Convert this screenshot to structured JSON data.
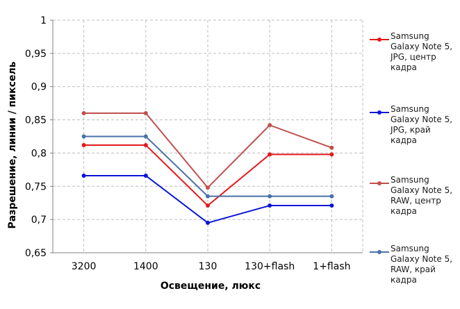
{
  "chart_data": {
    "type": "line",
    "xlabel": "Освещение,  люкс",
    "ylabel": "Разрешение,  линии / пиксель",
    "categories": [
      "3200",
      "1400",
      "130",
      "130+flash",
      "1+flash"
    ],
    "ylim": [
      0.65,
      1
    ],
    "yticks": [
      "0,65",
      "0,7",
      "0,75",
      "0,8",
      "0,85",
      "0,9",
      "0,95",
      "1"
    ],
    "ytick_values": [
      0.65,
      0.7,
      0.75,
      0.8,
      0.85,
      0.9,
      0.95,
      1
    ],
    "grid": true,
    "legend_position": "right",
    "series": [
      {
        "name": "Samsung Galaxy Note 5, JPG, центр кадра",
        "color": "#e31a1c",
        "values": [
          0.812,
          0.812,
          0.721,
          0.798,
          0.798
        ]
      },
      {
        "name": "Samsung Galaxy Note 5, JPG, край кадра",
        "color": "#0a14d6",
        "values": [
          0.766,
          0.766,
          0.695,
          0.721,
          0.721
        ]
      },
      {
        "name": "Samsung Galaxy Note 5, RAW, центр кадра",
        "color": "#c0504d",
        "values": [
          0.86,
          0.86,
          0.748,
          0.842,
          0.808
        ]
      },
      {
        "name": "Samsung Galaxy Note 5, RAW, край кадра",
        "color": "#4a72a8",
        "values": [
          0.825,
          0.825,
          0.735,
          0.735,
          0.735
        ]
      }
    ]
  },
  "legend": {
    "items": [
      "Samsung\nGalaxy Note 5,\nJPG, центр\nкадра",
      "Samsung\nGalaxy Note 5,\nJPG, край\nкадра",
      "Samsung\nGalaxy Note 5,\nRAW, центр\nкадра",
      "Samsung\nGalaxy Note 5,\nRAW, край\nкадра"
    ]
  }
}
